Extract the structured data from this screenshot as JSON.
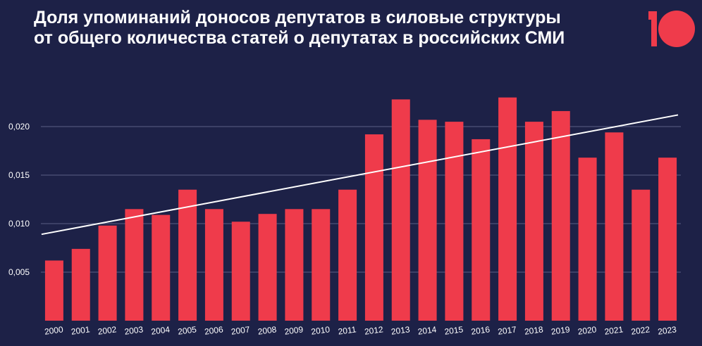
{
  "title": {
    "line1": "Доля упоминаний доносов депутатов в силовые структуры",
    "line2": "от общего количества статей о депутатах в российских СМИ"
  },
  "logo": {
    "icon": "brand-10-logo",
    "color": "#ef3b4b"
  },
  "colors": {
    "background": "#1d2147",
    "bar": "#ef3b4b",
    "trend": "#ffffff",
    "grid": "#5a5f86"
  },
  "chart_data": {
    "type": "bar",
    "title": "Доля упоминаний доносов депутатов в силовые структуры от общего количества статей о депутатах в российских СМИ",
    "xlabel": "",
    "ylabel": "",
    "categories": [
      "2000",
      "2001",
      "2002",
      "2003",
      "2004",
      "2005",
      "2006",
      "2007",
      "2008",
      "2009",
      "2010",
      "2011",
      "2012",
      "2013",
      "2014",
      "2015",
      "2016",
      "2017",
      "2018",
      "2019",
      "2020",
      "2021",
      "2022",
      "2023"
    ],
    "values": [
      0.0062,
      0.0074,
      0.0098,
      0.0115,
      0.0109,
      0.0135,
      0.0115,
      0.0102,
      0.011,
      0.0115,
      0.0115,
      0.0135,
      0.0192,
      0.0228,
      0.0207,
      0.0205,
      0.0187,
      0.023,
      0.0205,
      0.0216,
      0.0168,
      0.0194,
      0.0135,
      0.0168
    ],
    "trend": {
      "start": 0.0089,
      "end": 0.0212
    },
    "yticks": [
      0.005,
      0.01,
      0.015,
      0.02
    ],
    "ytick_labels": [
      "0,005",
      "0,010",
      "0,015",
      "0,020"
    ],
    "ylim": [
      0,
      0.0245
    ],
    "grid": true,
    "legend": "none"
  }
}
